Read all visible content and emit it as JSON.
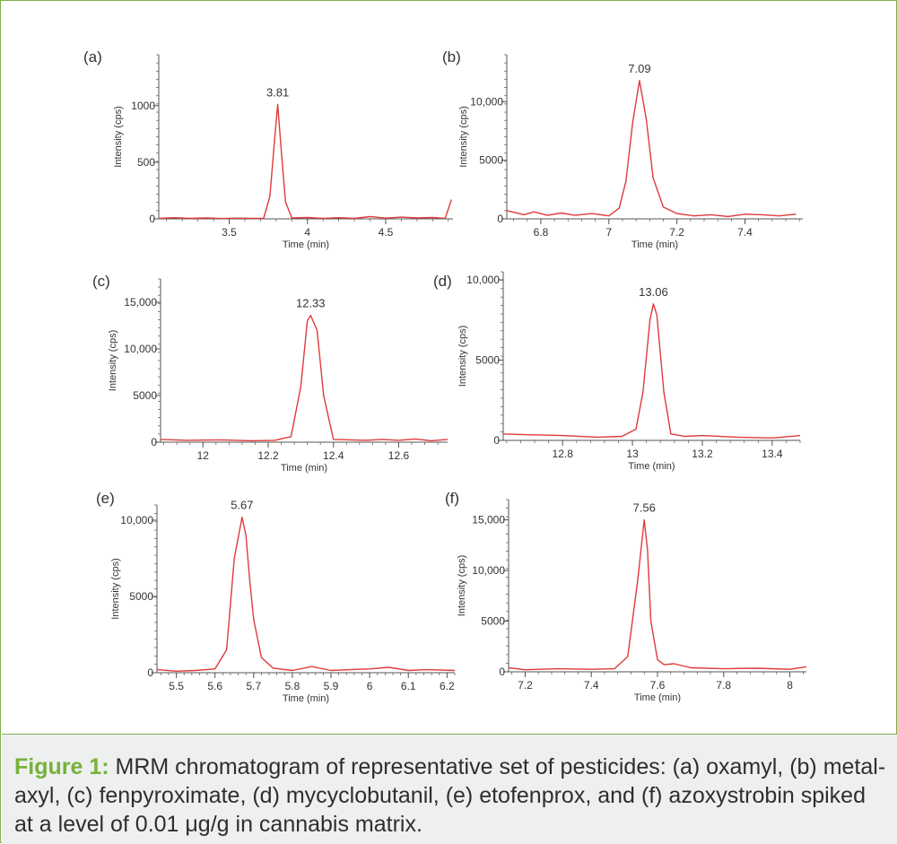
{
  "figure": {
    "caption_label": "Figure 1:",
    "caption_text": "MRM chromatogram of representative set of pesticides: (a) oxamyl, (b) metal-axyl, (c) fenpyroximate, (d) mycyclobutanil, (e) etofenprox, and (f) azoxystrobin spiked at a level of 0.01 μg/g in cannabis matrix.",
    "colors": {
      "trace": "#e03a3a",
      "axis": "#555555",
      "accent": "#76b13a"
    }
  },
  "chart_data": [
    {
      "type": "line",
      "panel": "(a)",
      "xlabel": "Time (min)",
      "ylabel": "Intensity (cps)",
      "xlim": [
        3.05,
        4.93
      ],
      "ylim": [
        0,
        1450
      ],
      "xticks": [
        3.5,
        4,
        4.5
      ],
      "xtick_labels": [
        "3.5",
        "4",
        "4.5"
      ],
      "yticks": [
        0,
        500,
        1000
      ],
      "ytick_labels": [
        "0",
        "500",
        "1000"
      ],
      "peak_label": "3.81",
      "series": [
        {
          "x": [
            3.05,
            3.15,
            3.25,
            3.35,
            3.45,
            3.55,
            3.65,
            3.72,
            3.76,
            3.79,
            3.81,
            3.83,
            3.86,
            3.9,
            4.0,
            4.1,
            4.2,
            4.3,
            4.4,
            4.5,
            4.6,
            4.7,
            4.8,
            4.88,
            4.92
          ],
          "y": [
            5,
            10,
            4,
            8,
            3,
            6,
            5,
            4,
            200,
            700,
            1010,
            650,
            150,
            8,
            12,
            5,
            10,
            4,
            20,
            6,
            15,
            8,
            12,
            5,
            170
          ]
        }
      ]
    },
    {
      "type": "line",
      "panel": "(b)",
      "xlabel": "Time (min)",
      "ylabel": "Intensity (cps)",
      "xlim": [
        6.7,
        7.57
      ],
      "ylim": [
        0,
        14000
      ],
      "xticks": [
        6.8,
        7,
        7.2,
        7.4
      ],
      "xtick_labels": [
        "6.8",
        "7",
        "7.2",
        "7.4"
      ],
      "yticks": [
        0,
        5000,
        10000
      ],
      "ytick_labels": [
        "0",
        "5000",
        "10,000"
      ],
      "peak_label": "7.09",
      "series": [
        {
          "x": [
            6.7,
            6.75,
            6.78,
            6.82,
            6.86,
            6.9,
            6.95,
            7.0,
            7.03,
            7.05,
            7.07,
            7.09,
            7.11,
            7.13,
            7.16,
            7.2,
            7.25,
            7.3,
            7.35,
            7.4,
            7.45,
            7.5,
            7.55
          ],
          "y": [
            700,
            350,
            600,
            300,
            500,
            300,
            450,
            250,
            900,
            3200,
            8200,
            11800,
            8500,
            3500,
            1000,
            450,
            250,
            350,
            200,
            400,
            350,
            250,
            400
          ]
        }
      ]
    },
    {
      "type": "line",
      "panel": "(c)",
      "xlabel": "Time (min)",
      "ylabel": "Intensity (cps)",
      "xlim": [
        11.87,
        12.75
      ],
      "ylim": [
        0,
        17500
      ],
      "xticks": [
        12,
        12.2,
        12.4,
        12.6
      ],
      "xtick_labels": [
        "12",
        "12.2",
        "12.4",
        "12.6"
      ],
      "yticks": [
        0,
        5000,
        10000,
        15000
      ],
      "ytick_labels": [
        "0",
        "5000",
        "10,000",
        "15,000"
      ],
      "peak_label": "12.33",
      "series": [
        {
          "x": [
            11.87,
            11.95,
            12.05,
            12.15,
            12.22,
            12.27,
            12.3,
            12.32,
            12.33,
            12.35,
            12.37,
            12.4,
            12.45,
            12.5,
            12.55,
            12.6,
            12.65,
            12.7,
            12.75
          ],
          "y": [
            300,
            200,
            250,
            150,
            200,
            600,
            6000,
            13000,
            13600,
            12000,
            5000,
            300,
            250,
            200,
            300,
            200,
            350,
            150,
            300
          ]
        }
      ]
    },
    {
      "type": "line",
      "panel": "(d)",
      "xlabel": "Time (min)",
      "ylabel": "Intensity (cps)",
      "xlim": [
        12.63,
        13.48
      ],
      "ylim": [
        0,
        10500
      ],
      "xticks": [
        12.8,
        13,
        13.2,
        13.4
      ],
      "xtick_labels": [
        "12.8",
        "13",
        "13.2",
        "13.4"
      ],
      "yticks": [
        0,
        5000,
        10000
      ],
      "ytick_labels": [
        "0",
        "5000",
        "10,000"
      ],
      "peak_label": "13.06",
      "series": [
        {
          "x": [
            12.63,
            12.7,
            12.8,
            12.9,
            12.97,
            13.01,
            13.03,
            13.05,
            13.06,
            13.07,
            13.09,
            13.11,
            13.15,
            13.2,
            13.3,
            13.4,
            13.48
          ],
          "y": [
            400,
            350,
            300,
            200,
            250,
            700,
            3000,
            7500,
            8500,
            7800,
            3000,
            400,
            250,
            300,
            200,
            150,
            300
          ]
        }
      ]
    },
    {
      "type": "line",
      "panel": "(e)",
      "xlabel": "Time (min)",
      "ylabel": "Intensity (cps)",
      "xlim": [
        5.45,
        6.22
      ],
      "ylim": [
        0,
        11000
      ],
      "xticks": [
        5.5,
        5.6,
        5.7,
        5.8,
        5.9,
        6,
        6.1,
        6.2
      ],
      "xtick_labels": [
        "5.5",
        "5.6",
        "5.7",
        "5.8",
        "5.9",
        "6",
        "6.1",
        "6.2"
      ],
      "yticks": [
        0,
        5000,
        10000
      ],
      "ytick_labels": [
        "0",
        "5000",
        "10,000"
      ],
      "peak_label": "5.67",
      "series": [
        {
          "x": [
            5.45,
            5.5,
            5.55,
            5.6,
            5.63,
            5.65,
            5.67,
            5.68,
            5.69,
            5.7,
            5.72,
            5.75,
            5.8,
            5.85,
            5.9,
            5.95,
            6.0,
            6.05,
            6.1,
            6.15,
            6.22
          ],
          "y": [
            200,
            100,
            150,
            250,
            1500,
            7500,
            10200,
            9000,
            6000,
            3500,
            1000,
            300,
            150,
            400,
            150,
            200,
            250,
            350,
            150,
            200,
            150
          ]
        }
      ]
    },
    {
      "type": "line",
      "panel": "(f)",
      "xlabel": "Time (min)",
      "ylabel": "Intensity (cps)",
      "xlim": [
        7.15,
        8.05
      ],
      "ylim": [
        0,
        17000
      ],
      "xticks": [
        7.2,
        7.4,
        7.6,
        7.8,
        8
      ],
      "xtick_labels": [
        "7.2",
        "7.4",
        "7.6",
        "7.8",
        "8"
      ],
      "yticks": [
        0,
        5000,
        10000,
        15000
      ],
      "ytick_labels": [
        "0",
        "5000",
        "10,000",
        "15,000"
      ],
      "peak_label": "7.56",
      "series": [
        {
          "x": [
            7.15,
            7.2,
            7.3,
            7.4,
            7.47,
            7.51,
            7.54,
            7.56,
            7.57,
            7.58,
            7.6,
            7.62,
            7.65,
            7.7,
            7.8,
            7.9,
            8.0,
            8.05
          ],
          "y": [
            400,
            200,
            300,
            250,
            300,
            1500,
            9000,
            15000,
            12000,
            5000,
            1200,
            700,
            800,
            400,
            300,
            350,
            250,
            500
          ]
        }
      ]
    }
  ]
}
